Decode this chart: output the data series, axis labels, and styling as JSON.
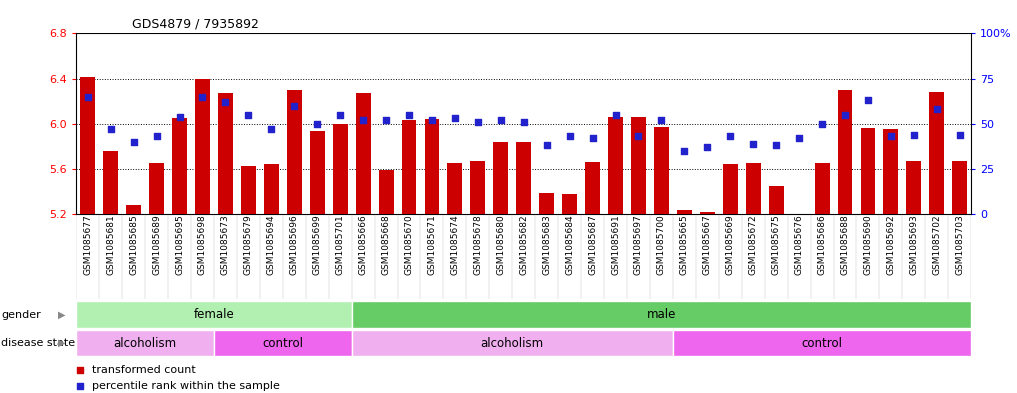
{
  "title": "GDS4879 / 7935892",
  "samples": [
    "GSM1085677",
    "GSM1085681",
    "GSM1085685",
    "GSM1085689",
    "GSM1085695",
    "GSM1085698",
    "GSM1085673",
    "GSM1085679",
    "GSM1085694",
    "GSM1085696",
    "GSM1085699",
    "GSM1085701",
    "GSM1085666",
    "GSM1085668",
    "GSM1085670",
    "GSM1085671",
    "GSM1085674",
    "GSM1085678",
    "GSM1085680",
    "GSM1085682",
    "GSM1085683",
    "GSM1085684",
    "GSM1085687",
    "GSM1085691",
    "GSM1085697",
    "GSM1085700",
    "GSM1085665",
    "GSM1085667",
    "GSM1085669",
    "GSM1085672",
    "GSM1085675",
    "GSM1085676",
    "GSM1085686",
    "GSM1085688",
    "GSM1085690",
    "GSM1085692",
    "GSM1085693",
    "GSM1085702",
    "GSM1085703"
  ],
  "bar_values": [
    6.41,
    5.76,
    5.28,
    5.65,
    6.05,
    6.4,
    6.27,
    5.63,
    5.64,
    6.3,
    5.94,
    5.995,
    6.27,
    5.59,
    6.03,
    6.04,
    5.65,
    5.67,
    5.84,
    5.84,
    5.39,
    5.38,
    5.66,
    6.06,
    6.06,
    5.97,
    5.24,
    5.22,
    5.64,
    5.65,
    5.45,
    5.2,
    5.65,
    6.3,
    5.96,
    5.95,
    5.67,
    6.28,
    5.67
  ],
  "percentile_values": [
    65,
    47,
    40,
    43,
    54,
    65,
    62,
    55,
    47,
    60,
    50,
    55,
    52,
    52,
    55,
    52,
    53,
    51,
    52,
    51,
    38,
    43,
    42,
    55,
    43,
    52,
    35,
    37,
    43,
    39,
    38,
    42,
    50,
    55,
    63,
    43,
    44,
    58,
    44
  ],
  "ylim_left": [
    5.2,
    6.8
  ],
  "ylim_right": [
    0,
    100
  ],
  "yticks_left": [
    5.2,
    5.6,
    6.0,
    6.4,
    6.8
  ],
  "yticks_right": [
    0,
    25,
    50,
    75,
    100
  ],
  "ytick_labels_right": [
    "0",
    "25",
    "50",
    "75",
    "100%"
  ],
  "bar_color": "#cc0000",
  "dot_color": "#2222cc",
  "bar_bottom": 5.2,
  "gender_groups": [
    {
      "label": "female",
      "start": 0,
      "end": 12,
      "color": "#b2f0b2"
    },
    {
      "label": "male",
      "start": 12,
      "end": 39,
      "color": "#66cc66"
    }
  ],
  "disease_groups": [
    {
      "label": "alcoholism",
      "start": 0,
      "end": 6,
      "color": "#f0b0f0"
    },
    {
      "label": "control",
      "start": 6,
      "end": 12,
      "color": "#ee66ee"
    },
    {
      "label": "alcoholism",
      "start": 12,
      "end": 26,
      "color": "#f0b0f0"
    },
    {
      "label": "control",
      "start": 26,
      "end": 39,
      "color": "#ee66ee"
    }
  ],
  "legend_items": [
    {
      "label": "transformed count",
      "color": "#cc0000"
    },
    {
      "label": "percentile rank within the sample",
      "color": "#2222cc"
    }
  ]
}
